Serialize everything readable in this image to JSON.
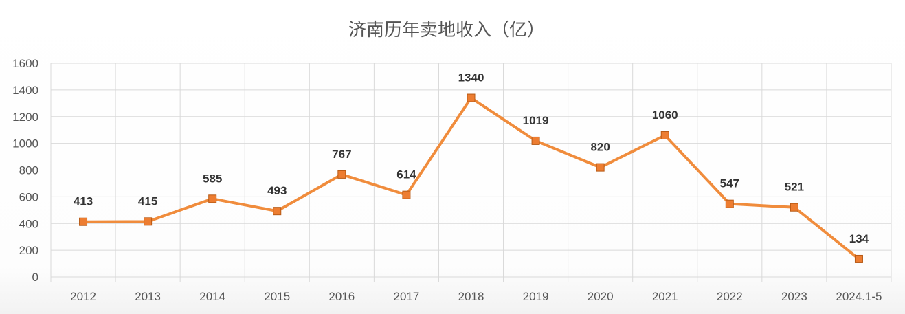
{
  "chart_data": {
    "type": "line",
    "title": "济南历年卖地收入（亿）",
    "xlabel": "",
    "ylabel": "",
    "categories": [
      "2012",
      "2013",
      "2014",
      "2015",
      "2016",
      "2017",
      "2018",
      "2019",
      "2020",
      "2021",
      "2022",
      "2023",
      "2024.1-5"
    ],
    "series": [
      {
        "values": [
          413,
          415,
          585,
          493,
          767,
          614,
          1340,
          1019,
          820,
          1060,
          547,
          521,
          134
        ]
      }
    ],
    "yticks": [
      "0",
      "200",
      "400",
      "600",
      "800",
      "1000",
      "1200",
      "1400",
      "1600"
    ],
    "ylim": [
      0,
      1600
    ],
    "grid": true,
    "legend": "none",
    "data_labels": [
      "413",
      "415",
      "585",
      "493",
      "767",
      "614",
      "1340",
      "1019",
      "820",
      "1060",
      "547",
      "521",
      "134"
    ],
    "colors": {
      "line": "#F08C3C",
      "marker": "#ED7D31",
      "marker_border": "#B85A15",
      "grid": "#D9D9D9"
    }
  }
}
